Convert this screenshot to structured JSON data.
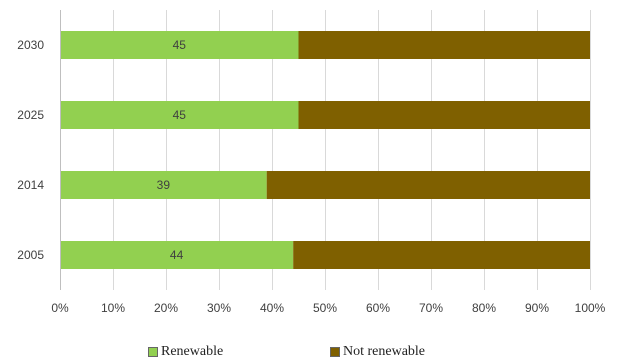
{
  "chart_data": {
    "type": "bar",
    "orientation": "horizontal",
    "stacked": true,
    "categories": [
      "2030",
      "2025",
      "2014",
      "2005"
    ],
    "series": [
      {
        "name": "Renewable",
        "values": [
          45,
          45,
          39,
          44
        ],
        "color": "#92d050",
        "data_labels": [
          "45",
          "45",
          "39",
          "44"
        ]
      },
      {
        "name": "Not renewable",
        "values": [
          55,
          55,
          61,
          56
        ],
        "color": "#7f6000"
      }
    ],
    "x_ticks": [
      "0%",
      "10%",
      "20%",
      "30%",
      "40%",
      "50%",
      "60%",
      "70%",
      "80%",
      "90%",
      "100%"
    ],
    "xlim": [
      0,
      100
    ],
    "grid": true,
    "legend_position": "bottom"
  }
}
